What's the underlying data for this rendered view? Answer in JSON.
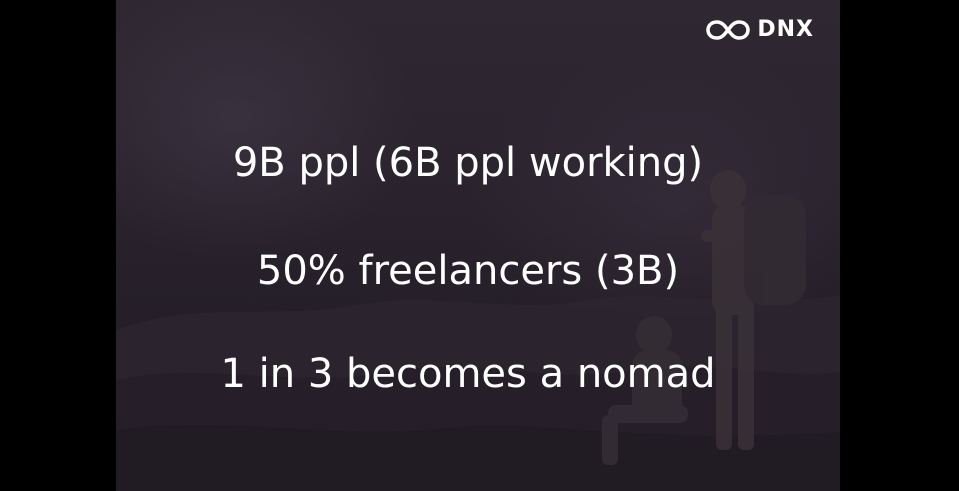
{
  "slide": {
    "logo": {
      "text": "DNX",
      "mark_icon": "infinity-icon"
    },
    "lines": [
      "9B ppl (6B ppl working)",
      "50% freelancers (3B)",
      "1 in 3 becomes a nomad"
    ]
  },
  "colors": {
    "text": "#ffffff",
    "background": "#2a232e",
    "letterbox": "#000000"
  }
}
